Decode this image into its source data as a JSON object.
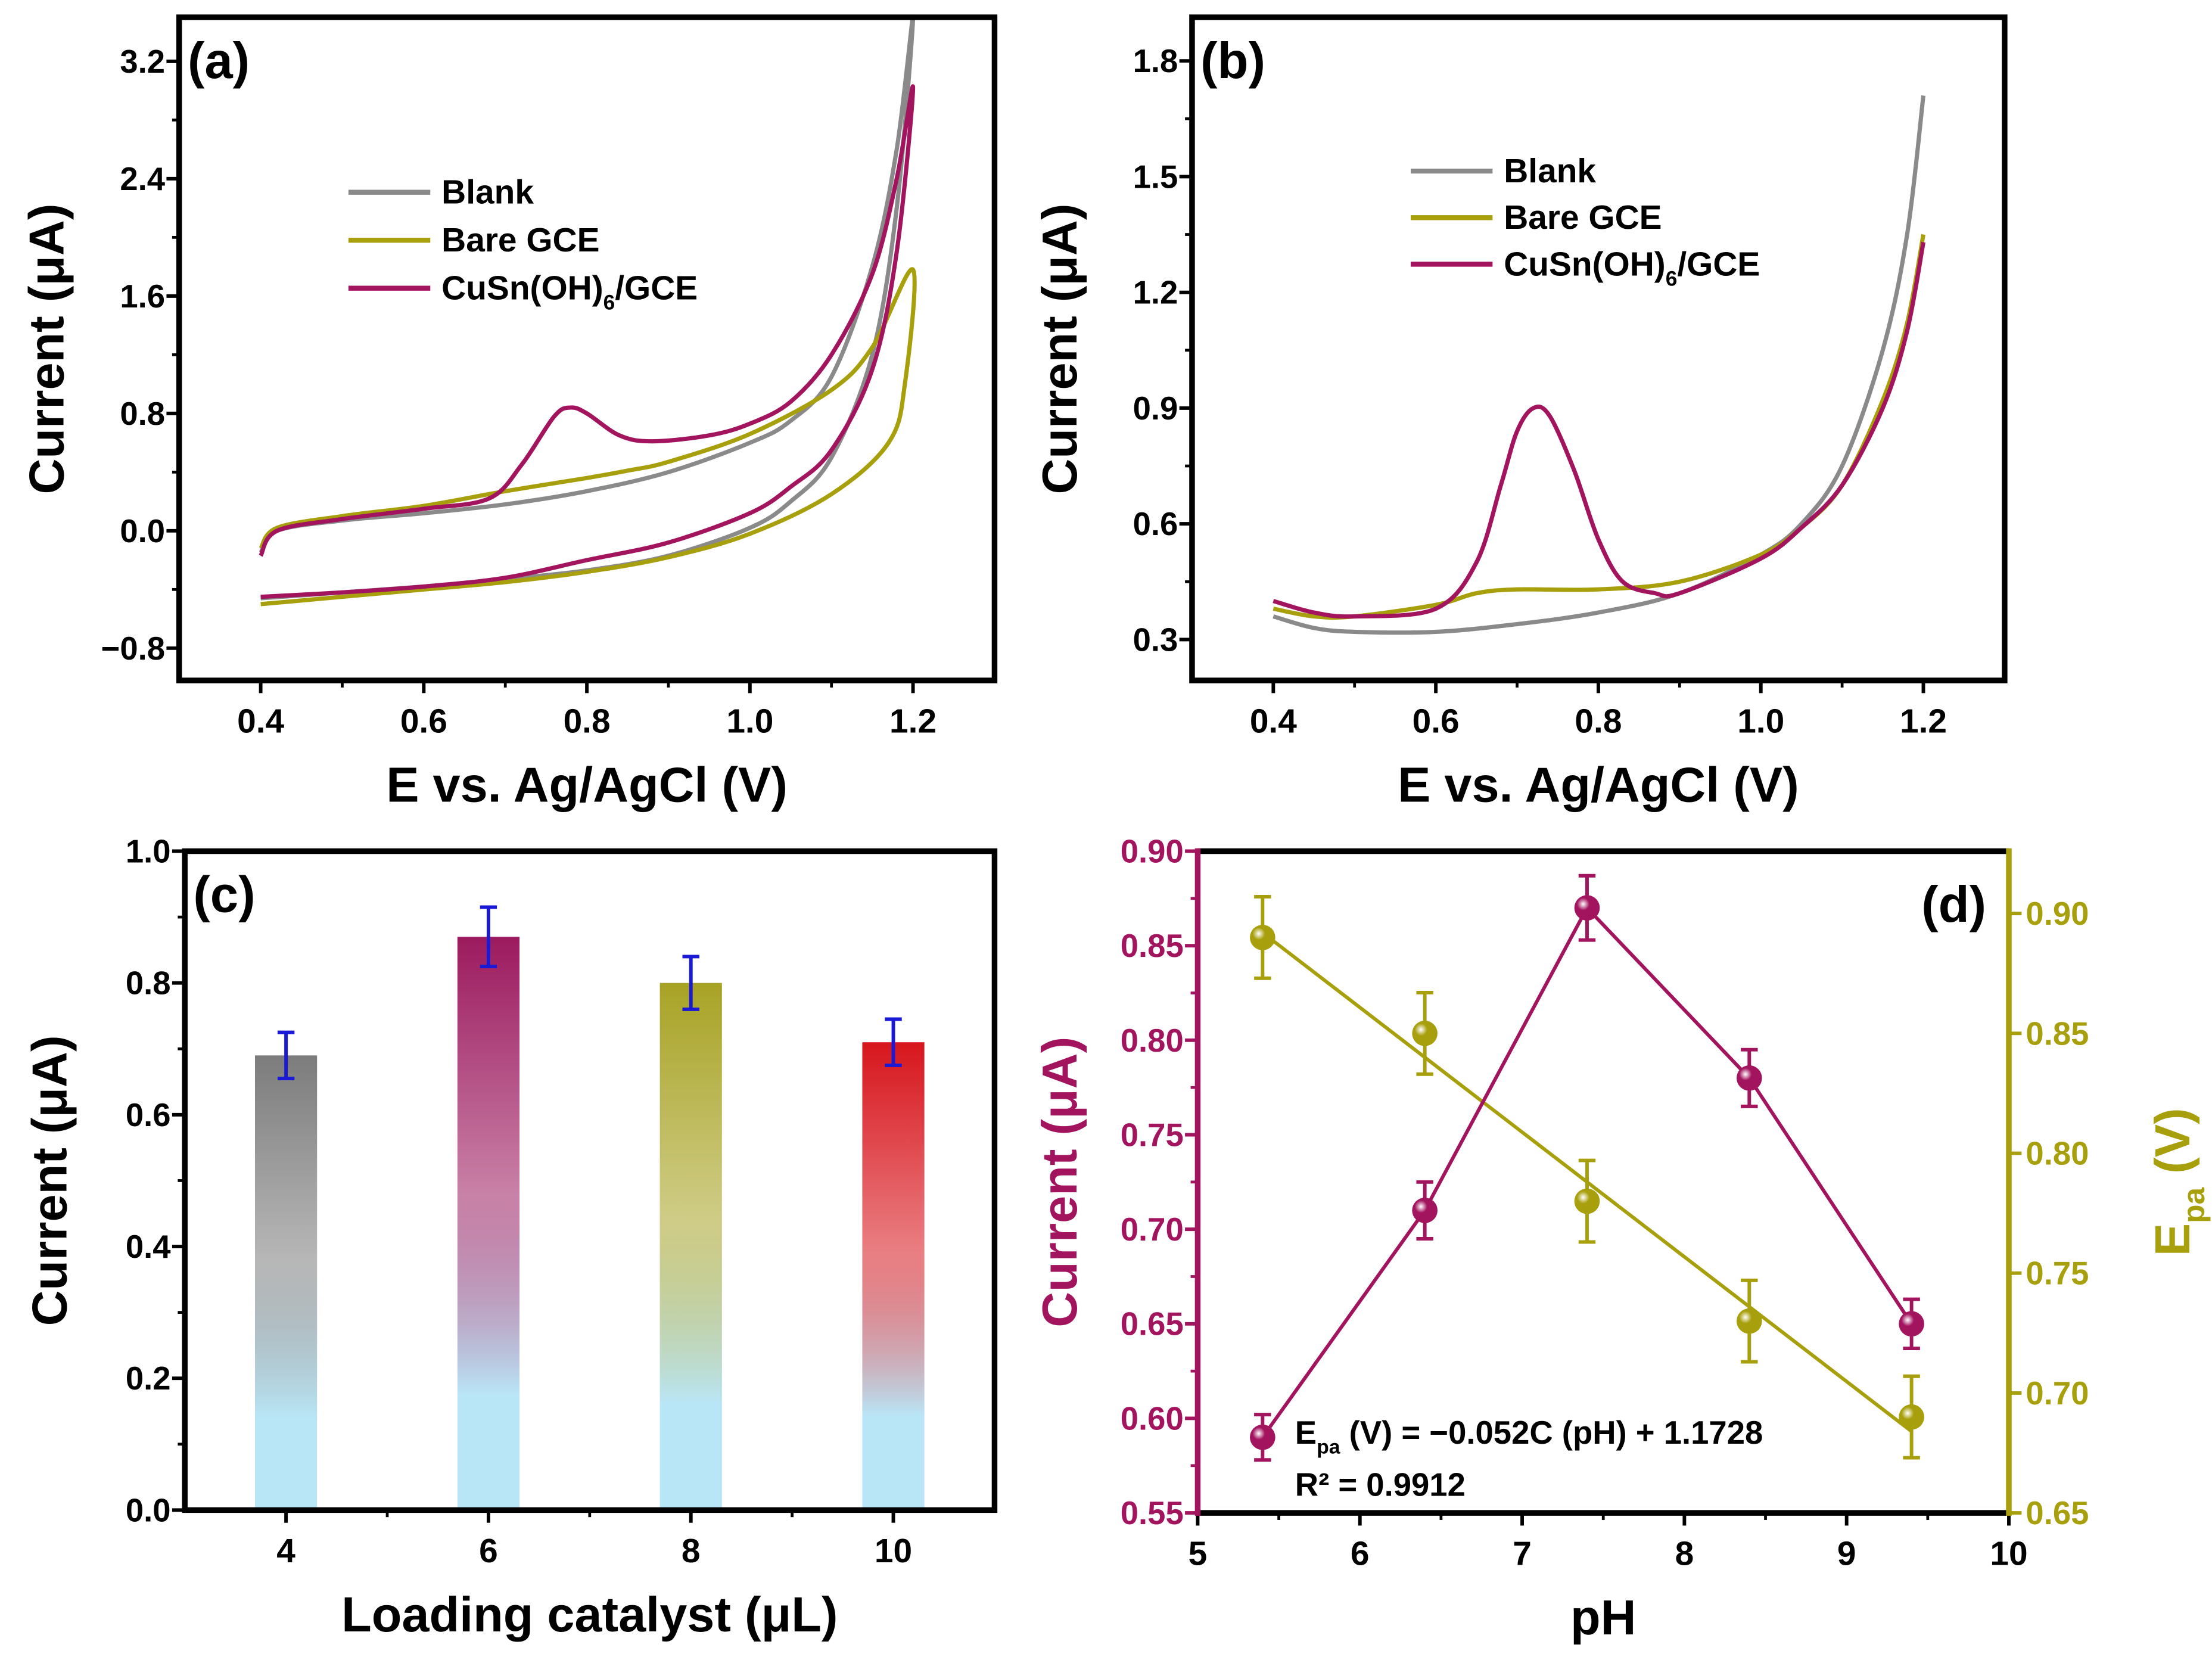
{
  "chart_data": [
    {
      "panel_label": "(a)",
      "type": "line",
      "xlabel": "E vs. Ag/AgCl (V)",
      "ylabel": "Current (μA)",
      "xlim": [
        0.3,
        1.3
      ],
      "ylim": [
        -1.02,
        3.5
      ],
      "xticks": [
        0.4,
        0.6,
        0.8,
        1.0,
        1.2
      ],
      "xtick_labels": [
        "0.4",
        "0.6",
        "0.8",
        "1.0",
        "1.2"
      ],
      "yticks": [
        -0.8,
        0.0,
        0.8,
        1.6,
        2.4,
        3.2
      ],
      "ytick_labels": [
        "−0.8",
        "0.0",
        "0.8",
        "1.6",
        "2.4",
        "3.2"
      ],
      "legend_position": "upper-center",
      "series": [
        {
          "name_parts": [
            "Blank"
          ],
          "color": "#8a8a8a",
          "points": [
            [
              0.4,
              -0.15
            ],
            [
              0.42,
              0.0
            ],
            [
              0.5,
              0.07
            ],
            [
              0.6,
              0.12
            ],
            [
              0.7,
              0.18
            ],
            [
              0.8,
              0.27
            ],
            [
              0.9,
              0.4
            ],
            [
              1.0,
              0.6
            ],
            [
              1.05,
              0.75
            ],
            [
              1.1,
              1.05
            ],
            [
              1.15,
              1.8
            ],
            [
              1.18,
              2.6
            ],
            [
              1.2,
              3.5
            ],
            [
              1.18,
              2.2
            ],
            [
              1.15,
              1.2
            ],
            [
              1.1,
              0.5
            ],
            [
              1.05,
              0.2
            ],
            [
              1.0,
              0.02
            ],
            [
              0.9,
              -0.17
            ],
            [
              0.8,
              -0.27
            ],
            [
              0.7,
              -0.33
            ],
            [
              0.6,
              -0.38
            ],
            [
              0.5,
              -0.42
            ],
            [
              0.4,
              -0.46
            ]
          ]
        },
        {
          "name_parts": [
            "Bare GCE"
          ],
          "color": "#a89f0c",
          "points": [
            [
              0.4,
              -0.12
            ],
            [
              0.42,
              0.02
            ],
            [
              0.5,
              0.1
            ],
            [
              0.6,
              0.17
            ],
            [
              0.7,
              0.27
            ],
            [
              0.8,
              0.36
            ],
            [
              0.85,
              0.41
            ],
            [
              0.9,
              0.47
            ],
            [
              1.0,
              0.66
            ],
            [
              1.1,
              0.96
            ],
            [
              1.15,
              1.25
            ],
            [
              1.2,
              1.78
            ],
            [
              1.19,
              1.0
            ],
            [
              1.17,
              0.6
            ],
            [
              1.1,
              0.25
            ],
            [
              1.0,
              -0.02
            ],
            [
              0.9,
              -0.18
            ],
            [
              0.8,
              -0.28
            ],
            [
              0.7,
              -0.35
            ],
            [
              0.6,
              -0.4
            ],
            [
              0.5,
              -0.45
            ],
            [
              0.4,
              -0.5
            ]
          ]
        },
        {
          "name_parts": [
            "CuSn(OH)",
            "6",
            "/GCE"
          ],
          "color": "#a3145f",
          "points": [
            [
              0.4,
              -0.17
            ],
            [
              0.42,
              0.0
            ],
            [
              0.5,
              0.08
            ],
            [
              0.6,
              0.15
            ],
            [
              0.68,
              0.22
            ],
            [
              0.72,
              0.45
            ],
            [
              0.76,
              0.78
            ],
            [
              0.78,
              0.84
            ],
            [
              0.8,
              0.8
            ],
            [
              0.84,
              0.65
            ],
            [
              0.88,
              0.61
            ],
            [
              0.95,
              0.65
            ],
            [
              1.0,
              0.73
            ],
            [
              1.05,
              0.88
            ],
            [
              1.1,
              1.2
            ],
            [
              1.15,
              1.75
            ],
            [
              1.18,
              2.4
            ],
            [
              1.2,
              3.02
            ],
            [
              1.18,
              1.9
            ],
            [
              1.15,
              1.1
            ],
            [
              1.1,
              0.55
            ],
            [
              1.05,
              0.3
            ],
            [
              1.0,
              0.12
            ],
            [
              0.9,
              -0.08
            ],
            [
              0.8,
              -0.2
            ],
            [
              0.7,
              -0.32
            ],
            [
              0.6,
              -0.38
            ],
            [
              0.5,
              -0.42
            ],
            [
              0.4,
              -0.45
            ]
          ]
        }
      ]
    },
    {
      "panel_label": "(b)",
      "type": "line",
      "xlabel": "E vs. Ag/AgCl (V)",
      "ylabel": "Current (μA)",
      "xlim": [
        0.3,
        1.3
      ],
      "ylim": [
        0.194,
        1.913
      ],
      "xticks": [
        0.4,
        0.6,
        0.8,
        1.0,
        1.2
      ],
      "xtick_labels": [
        "0.4",
        "0.6",
        "0.8",
        "1.0",
        "1.2"
      ],
      "yticks": [
        0.3,
        0.6,
        0.9,
        1.2,
        1.5,
        1.8
      ],
      "ytick_labels": [
        "0.3",
        "0.6",
        "0.9",
        "1.2",
        "1.5",
        "1.8"
      ],
      "legend_position": "upper-center",
      "series": [
        {
          "name_parts": [
            "Blank"
          ],
          "color": "#8a8a8a",
          "points": [
            [
              0.4,
              0.36
            ],
            [
              0.45,
              0.33
            ],
            [
              0.5,
              0.32
            ],
            [
              0.6,
              0.32
            ],
            [
              0.7,
              0.34
            ],
            [
              0.8,
              0.37
            ],
            [
              0.9,
              0.42
            ],
            [
              1.0,
              0.52
            ],
            [
              1.05,
              0.6
            ],
            [
              1.1,
              0.75
            ],
            [
              1.15,
              1.05
            ],
            [
              1.18,
              1.35
            ],
            [
              1.2,
              1.71
            ]
          ]
        },
        {
          "name_parts": [
            "Bare GCE"
          ],
          "color": "#a89f0c",
          "points": [
            [
              0.4,
              0.38
            ],
            [
              0.45,
              0.36
            ],
            [
              0.5,
              0.36
            ],
            [
              0.6,
              0.39
            ],
            [
              0.65,
              0.42
            ],
            [
              0.7,
              0.43
            ],
            [
              0.8,
              0.43
            ],
            [
              0.9,
              0.45
            ],
            [
              1.0,
              0.52
            ],
            [
              1.05,
              0.59
            ],
            [
              1.1,
              0.7
            ],
            [
              1.15,
              0.92
            ],
            [
              1.18,
              1.12
            ],
            [
              1.2,
              1.35
            ]
          ]
        },
        {
          "name_parts": [
            "CuSn(OH)",
            "6",
            "/GCE"
          ],
          "color": "#a3145f",
          "points": [
            [
              0.4,
              0.4
            ],
            [
              0.45,
              0.37
            ],
            [
              0.5,
              0.36
            ],
            [
              0.6,
              0.38
            ],
            [
              0.65,
              0.5
            ],
            [
              0.68,
              0.7
            ],
            [
              0.7,
              0.84
            ],
            [
              0.72,
              0.9
            ],
            [
              0.74,
              0.88
            ],
            [
              0.77,
              0.74
            ],
            [
              0.8,
              0.56
            ],
            [
              0.83,
              0.45
            ],
            [
              0.87,
              0.42
            ],
            [
              0.9,
              0.42
            ],
            [
              1.0,
              0.51
            ],
            [
              1.05,
              0.59
            ],
            [
              1.1,
              0.7
            ],
            [
              1.15,
              0.9
            ],
            [
              1.18,
              1.1
            ],
            [
              1.2,
              1.33
            ]
          ]
        }
      ]
    },
    {
      "panel_label": "(c)",
      "type": "bar",
      "xlabel": "Loading catalyst (μL)",
      "ylabel": "Current (μA)",
      "xlim": [
        3,
        11
      ],
      "ylim": [
        0.0,
        1.0
      ],
      "categories": [
        "4",
        "6",
        "8",
        "10"
      ],
      "x": [
        4,
        6,
        8,
        10
      ],
      "values": [
        0.69,
        0.87,
        0.8,
        0.71
      ],
      "errors": [
        0.035,
        0.045,
        0.04,
        0.035
      ],
      "bar_colors": [
        "#7c7c7c",
        "#9c1a5f",
        "#a8a325",
        "#d7161d"
      ],
      "bar_fade_color": "#b9e6f7",
      "error_color": "#1a1ad6",
      "yticks": [
        0.0,
        0.2,
        0.4,
        0.6,
        0.8,
        1.0
      ],
      "ytick_labels": [
        "0.0",
        "0.2",
        "0.4",
        "0.6",
        "0.8",
        "1.0"
      ]
    },
    {
      "panel_label": "(d)",
      "type": "scatter",
      "xlabel": "pH",
      "ylabel": "Current (μA)",
      "ylabel_right_parts": [
        "E",
        "pa",
        " (V)"
      ],
      "xlim": [
        5,
        10
      ],
      "ylim": [
        0.55,
        0.9
      ],
      "ylim_right": [
        0.65,
        0.926
      ],
      "xticks": [
        5,
        6,
        7,
        8,
        9,
        10
      ],
      "xtick_labels": [
        "5",
        "6",
        "7",
        "8",
        "9",
        "10"
      ],
      "yticks": [
        0.55,
        0.6,
        0.65,
        0.7,
        0.75,
        0.8,
        0.85,
        0.9
      ],
      "ytick_labels": [
        "0.55",
        "0.60",
        "0.65",
        "0.70",
        "0.75",
        "0.80",
        "0.85",
        "0.90"
      ],
      "yticks_right": [
        0.65,
        0.7,
        0.75,
        0.8,
        0.85,
        0.9
      ],
      "ytick_labels_right": [
        "0.65",
        "0.70",
        "0.75",
        "0.80",
        "0.85",
        "0.90"
      ],
      "series": [
        {
          "name": "Current",
          "axis": "left",
          "color": "#a3145f",
          "x": [
            5.4,
            6.4,
            7.4,
            8.4,
            9.4
          ],
          "y": [
            0.59,
            0.71,
            0.87,
            0.78,
            0.65
          ],
          "err": [
            0.012,
            0.015,
            0.017,
            0.015,
            0.013
          ],
          "connect": true
        },
        {
          "name": "Epa",
          "axis": "right",
          "color": "#a89f0c",
          "x": [
            5.4,
            6.4,
            7.4,
            8.4,
            9.4
          ],
          "y": [
            0.89,
            0.85,
            0.78,
            0.73,
            0.69
          ],
          "err": [
            0.017,
            0.017,
            0.017,
            0.017,
            0.017
          ],
          "connect": false
        }
      ],
      "fit": {
        "slope": -0.052,
        "intercept": 1.1728,
        "x_range": [
          5.4,
          9.4
        ]
      },
      "annotation": {
        "eq_parts": [
          "E",
          "pa",
          " (V) = −0.052C (pH) + 1.1728"
        ],
        "r2": "R² = 0.9912"
      }
    }
  ]
}
